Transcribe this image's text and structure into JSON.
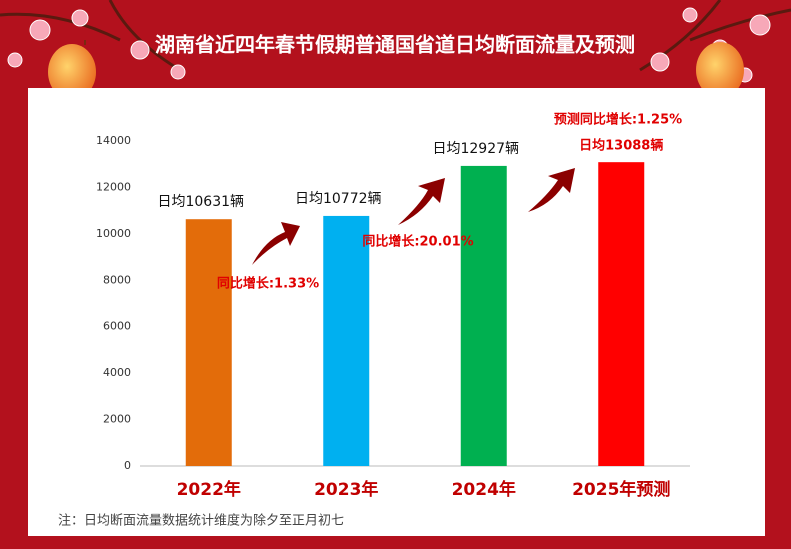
{
  "chart_data": {
    "type": "bar",
    "title": "湖南省近四年春节假期普通国省道日均断面流量及预测",
    "categories": [
      "2022年",
      "2023年",
      "2024年",
      "2025年预测"
    ],
    "values": [
      10631,
      10772,
      12927,
      13088
    ],
    "value_labels": [
      "日均10631辆",
      "日均10772辆",
      "日均12927辆",
      "日均13088辆"
    ],
    "colors": [
      "#e36c0a",
      "#00b0f0",
      "#00b050",
      "#ff0000"
    ],
    "annotations": [
      "同比增长:1.33%",
      "同比增长:20.01%",
      "预测同比增长:1.25%"
    ],
    "note": "注：日均断面流量数据统计维度为除夕至正月初七",
    "ylim": [
      0,
      14000
    ],
    "yticks": [
      0,
      2000,
      4000,
      6000,
      8000,
      10000,
      12000,
      14000
    ],
    "grid": false
  }
}
